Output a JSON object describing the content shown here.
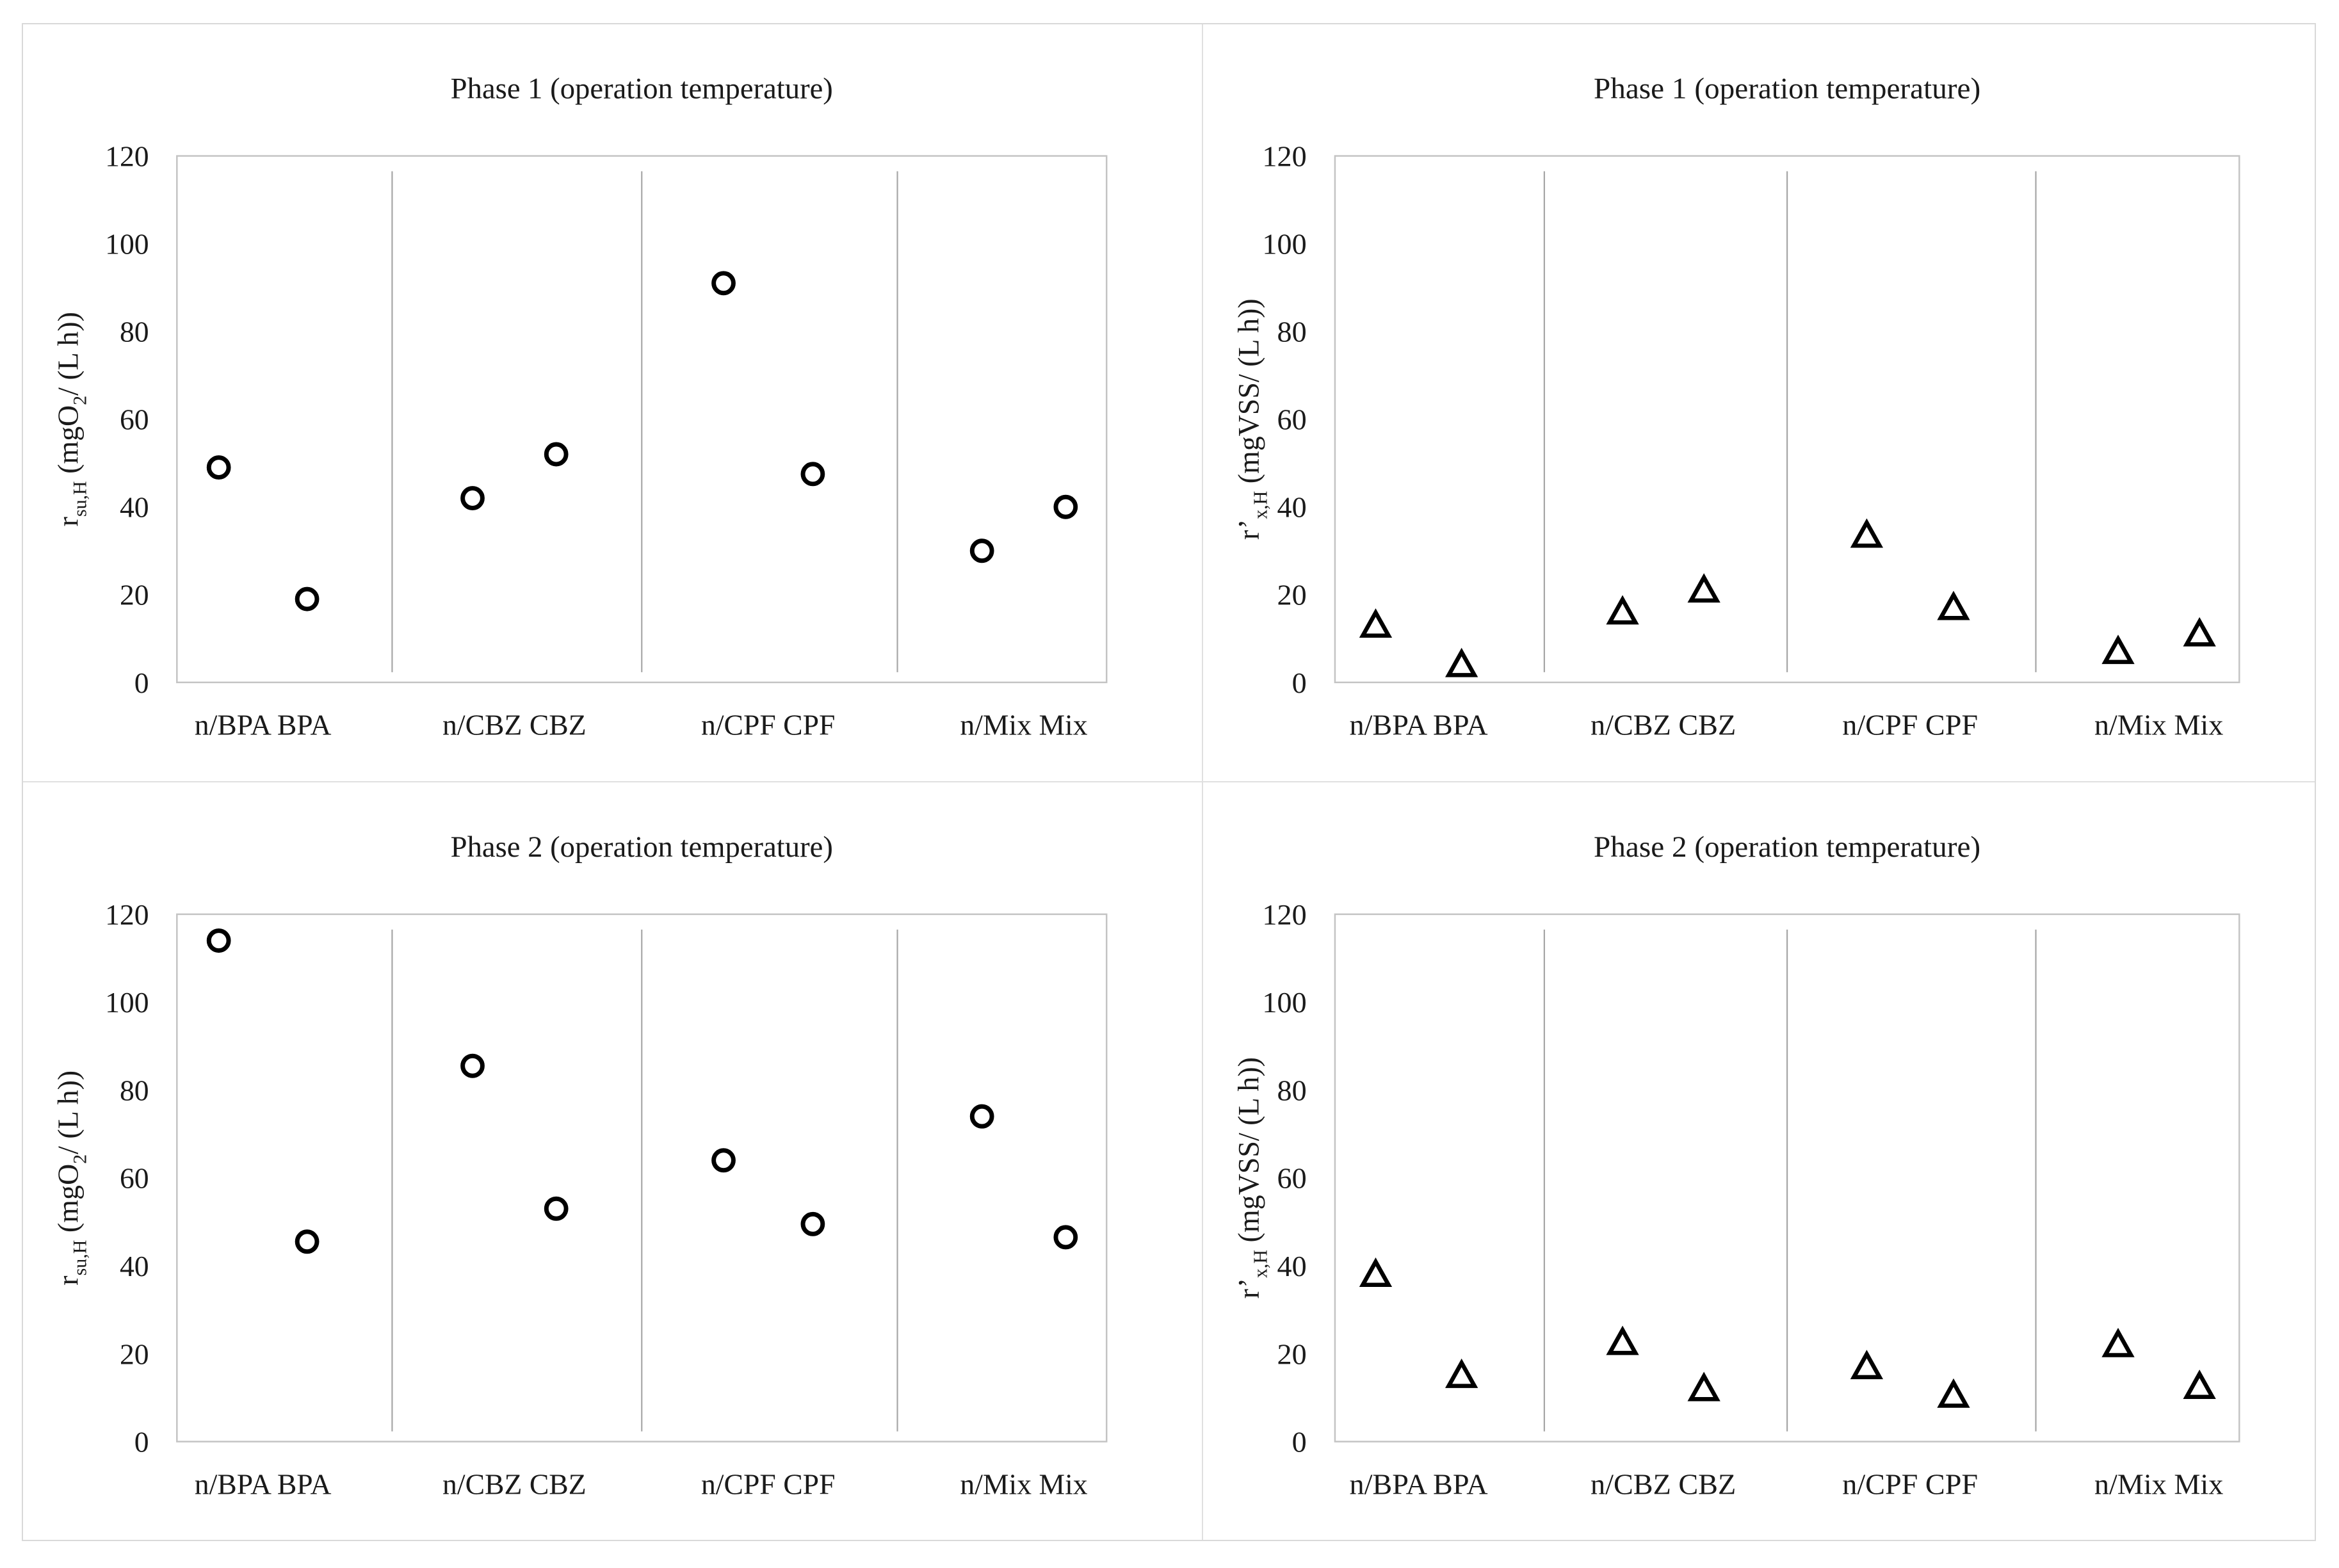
{
  "figure": {
    "background": "#ffffff",
    "outer_border_color": "#d9d9d9",
    "panel_divider_color": "#e0e0e0",
    "axis_frame_color": "#c4c4c4",
    "separator_line_color": "#a6a6a6",
    "text_color": "#1a1a1a",
    "marker_color": "#000000",
    "marker_fill": "#ffffff"
  },
  "chart_data": [
    {
      "id": "phase1-oxygen-uptake",
      "position": "top-left",
      "type": "scatter",
      "marker": "circle",
      "title": "Phase 1 (operation temperature)",
      "ylabel_plain": "r su,H (mgO2/ (L h))",
      "ylabel_segments": [
        {
          "text": "r",
          "sub": false
        },
        {
          "text": "su,H",
          "sub": true
        },
        {
          "text": " (mgO",
          "sub": false
        },
        {
          "text": "2",
          "sub": true
        },
        {
          "text": "/ (L h))",
          "sub": false
        }
      ],
      "categories": [
        "n/BPA",
        "BPA",
        "n/CBZ",
        "CBZ",
        "n/CPF",
        "CPF",
        "n/Mix",
        "Mix"
      ],
      "group_labels": [
        "n/BPA BPA",
        "n/CBZ CBZ",
        "n/CPF CPF",
        "n/Mix Mix"
      ],
      "values": [
        49,
        19,
        42,
        52,
        91,
        47.5,
        30,
        40
      ],
      "ylim": [
        0,
        120
      ],
      "yticks": [
        0,
        20,
        40,
        60,
        80,
        100,
        120
      ],
      "grid": false,
      "legend": "none",
      "group_separators": true
    },
    {
      "id": "phase1-biomass-growth",
      "position": "top-right",
      "type": "scatter",
      "marker": "triangle",
      "title": "Phase 1 (operation temperature)",
      "ylabel_plain": "r'x,H (mgVSS/ (L h))",
      "ylabel_segments": [
        {
          "text": "r’",
          "sub": false
        },
        {
          "text": "x,H",
          "sub": true
        },
        {
          "text": " (mgVSS/ (L h))",
          "sub": false
        }
      ],
      "categories": [
        "n/BPA",
        "BPA",
        "n/CBZ",
        "CBZ",
        "n/CPF",
        "CPF",
        "n/Mix",
        "Mix"
      ],
      "group_labels": [
        "n/BPA BPA",
        "n/CBZ CBZ",
        "n/CPF CPF",
        "n/Mix Mix"
      ],
      "values": [
        13,
        4,
        16,
        21,
        33.5,
        17,
        7,
        11
      ],
      "ylim": [
        0,
        120
      ],
      "yticks": [
        0,
        20,
        40,
        60,
        80,
        100,
        120
      ],
      "grid": false,
      "legend": "none",
      "group_separators": true
    },
    {
      "id": "phase2-oxygen-uptake",
      "position": "bottom-left",
      "type": "scatter",
      "marker": "circle",
      "title": "Phase 2 (operation temperature)",
      "ylabel_plain": "r su,H (mgO2/ (L h))",
      "ylabel_segments": [
        {
          "text": "r",
          "sub": false
        },
        {
          "text": "su,H",
          "sub": true
        },
        {
          "text": " (mgO",
          "sub": false
        },
        {
          "text": "2",
          "sub": true
        },
        {
          "text": "/ (L h))",
          "sub": false
        }
      ],
      "categories": [
        "n/BPA",
        "BPA",
        "n/CBZ",
        "CBZ",
        "n/CPF",
        "CPF",
        "n/Mix",
        "Mix"
      ],
      "group_labels": [
        "n/BPA BPA",
        "n/CBZ CBZ",
        "n/CPF CPF",
        "n/Mix Mix"
      ],
      "values": [
        114,
        45.5,
        85.5,
        53,
        64,
        49.5,
        74,
        46.5
      ],
      "ylim": [
        0,
        120
      ],
      "yticks": [
        0,
        20,
        40,
        60,
        80,
        100,
        120
      ],
      "grid": false,
      "legend": "none",
      "group_separators": true
    },
    {
      "id": "phase2-biomass-growth",
      "position": "bottom-right",
      "type": "scatter",
      "marker": "triangle",
      "title": "Phase 2 (operation temperature)",
      "ylabel_plain": "r'x,H (mgVSS/ (L h))",
      "ylabel_segments": [
        {
          "text": "r’",
          "sub": false
        },
        {
          "text": "x,H",
          "sub": true
        },
        {
          "text": " (mgVSS/ (L h))",
          "sub": false
        }
      ],
      "categories": [
        "n/BPA",
        "BPA",
        "n/CBZ",
        "CBZ",
        "n/CPF",
        "CPF",
        "n/Mix",
        "Mix"
      ],
      "group_labels": [
        "n/BPA BPA",
        "n/CBZ CBZ",
        "n/CPF CPF",
        "n/Mix Mix"
      ],
      "values": [
        38,
        15,
        22.5,
        12,
        17,
        10.5,
        22,
        12.5
      ],
      "ylim": [
        0,
        120
      ],
      "yticks": [
        0,
        20,
        40,
        60,
        80,
        100,
        120
      ],
      "grid": false,
      "legend": "none",
      "group_separators": true
    }
  ]
}
